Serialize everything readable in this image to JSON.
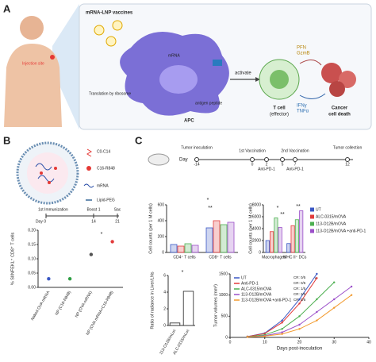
{
  "panels": {
    "a": {
      "label": "A",
      "injection_site": "Injection site",
      "vaccines": "mRNA-LNP vaccines",
      "mrna": "mRNA",
      "translation": "Translation by ribosome",
      "antigen": "antigen peptide",
      "apc": "APC",
      "activate": "activate",
      "t_cell": "T cell",
      "t_cell_sub": "(effector)",
      "pfn": "PFN",
      "gzmb": "GzmB",
      "ifng": "IFNγ",
      "tnfa": "TNFα",
      "cancer": "Cancer",
      "cell_death": "cell death"
    },
    "b": {
      "label": "B",
      "lnp_legend": [
        "C0-C14",
        "C16-R848",
        "mRNA",
        "Lipid-PEG"
      ],
      "timeline": {
        "events": [
          "1st Immunization",
          "Boost 1",
          "Sac"
        ],
        "days": [
          "Day 0",
          "14",
          "21"
        ]
      }
    },
    "c": {
      "label": "C",
      "timeline": {
        "events": [
          "Tumor inoculation",
          "1st Vaccination",
          "2nd Vaccination",
          "Tumor collection"
        ],
        "day": "Day",
        "days": [
          "-14",
          "0",
          "2",
          "5",
          "7",
          "12"
        ],
        "treatments": [
          "Anti-PD-1",
          "Anti-PD-1"
        ]
      }
    }
  },
  "chart_data": [
    {
      "type": "scatter",
      "ylabel": "% SIINFEKL⁺ CD8⁺ T cells",
      "categories": [
        "Naked OVA mRNA",
        "NP (C16-R848)",
        "NP (OVA mRNA)",
        "NP (OVA mRNA+C16-R848)"
      ],
      "values": [
        0.03,
        0.03,
        0.115,
        0.16
      ],
      "colors": [
        "#3a57c4",
        "#2e9e44",
        "#555555",
        "#e23b3b"
      ],
      "ylim": [
        0,
        0.2
      ],
      "yticks": [
        {
          "value": 0,
          "label": "0.00"
        },
        {
          "value": 0.05,
          "label": "0.05"
        },
        {
          "value": 0.1,
          "label": "0.10"
        },
        {
          "value": 0.15,
          "label": "0.15"
        },
        {
          "value": 0.2,
          "label": "0.20"
        }
      ],
      "annotations": [
        "*"
      ]
    },
    {
      "type": "bar",
      "ylabel": "Cell counts (per 1 M cells)",
      "categories": [
        "CD4⁺ T cells",
        "CD8⁺ T cells"
      ],
      "series": [
        {
          "color": "#3a57c4",
          "values": [
            100,
            310
          ]
        },
        {
          "color": "#e23b3b",
          "values": [
            80,
            400
          ]
        },
        {
          "color": "#4caf50",
          "values": [
            110,
            350
          ]
        },
        {
          "color": "#9b4fc9",
          "values": [
            90,
            380
          ]
        }
      ],
      "ylim": [
        0,
        600
      ],
      "yticks": [
        0,
        200,
        400,
        600
      ],
      "annotations": [
        "*",
        "**"
      ]
    },
    {
      "type": "bar",
      "ylabel": "Cell counts (per 1 M cells)",
      "categories": [
        "Macrophages",
        "MHC II⁺ DCs"
      ],
      "series": [
        {
          "name": "UT",
          "color": "#3a57c4",
          "values": [
            2000,
            1500
          ]
        },
        {
          "name": "ALC-0315/mOVA",
          "color": "#e23b3b",
          "values": [
            3500,
            4500
          ]
        },
        {
          "name": "113-O12B/mOVA",
          "color": "#4caf50",
          "values": [
            5800,
            5500
          ]
        },
        {
          "name": "113-O12B/mOVA +anti-PD-1",
          "color": "#9b4fc9",
          "values": [
            4200,
            7000
          ]
        }
      ],
      "ylim": [
        0,
        8000
      ],
      "yticks": [
        0,
        2000,
        4000,
        6000,
        8000
      ],
      "legend": "right",
      "annotations": [
        "*",
        "**",
        "**"
      ]
    },
    {
      "type": "bar",
      "ylabel": "Ratio of radiance in Liver/LNs",
      "categories": [
        "113-O12B/mLuc",
        "ALC-0315/mLuc"
      ],
      "series": [
        {
          "color": "#ffffff",
          "values": [
            0.3,
            4.1
          ]
        }
      ],
      "ylim": [
        0,
        6
      ],
      "yticks": [
        0,
        2,
        4,
        6
      ],
      "annotations": [
        "*"
      ]
    },
    {
      "type": "line",
      "xlabel": "Days post-inoculation",
      "ylabel": "Tumor volumes (mm³)",
      "x": [
        5,
        10,
        15,
        20,
        25,
        30,
        35
      ],
      "series": [
        {
          "name": "UT",
          "note": "CR: 0/5",
          "color": "#3a57c4",
          "values": [
            20,
            100,
            400,
            900,
            1500,
            null,
            null
          ]
        },
        {
          "name": "Anti-PD-1",
          "note": "CR: 0/5",
          "color": "#e23b3b",
          "values": [
            20,
            90,
            350,
            800,
            1400,
            null,
            null
          ]
        },
        {
          "name": "ALC-0315/mOVA",
          "note": "CR: 1/5",
          "color": "#4caf50",
          "values": [
            15,
            60,
            200,
            500,
            900,
            1300,
            null
          ]
        },
        {
          "name": "113-O12B/mOVA",
          "note": "CR: 2/5",
          "color": "#9b4fc9",
          "values": [
            10,
            40,
            120,
            300,
            600,
            900,
            1200
          ]
        },
        {
          "name": "113-O12B/mOVA +anti-PD-1",
          "note": "CR: 3/5",
          "color": "#f29a2e",
          "values": [
            10,
            30,
            80,
            200,
            400,
            700,
            1000
          ]
        }
      ],
      "xlim": [
        0,
        40
      ],
      "xticks": [
        0,
        10,
        20,
        30,
        40
      ],
      "ylim": [
        0,
        1500
      ],
      "yticks": [
        0,
        500,
        1000,
        1500
      ],
      "legend": "upper left",
      "annotations": [
        "*"
      ]
    }
  ]
}
